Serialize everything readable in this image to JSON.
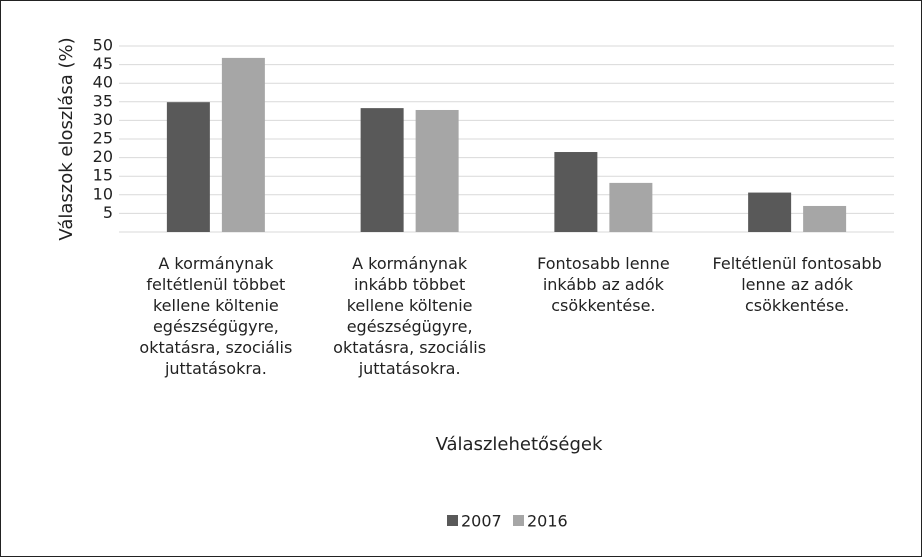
{
  "chart_data": {
    "type": "bar",
    "y_label": "Válaszok eloszlása (%)",
    "x_label": "Válaszlehetőségek",
    "categories": [
      "A kormánynak feltétlenül többet kellene költenie egészségügyre, oktatásra, szociális juttatásokra.",
      "A kormánynak inkább többet kellene költenie egészségügyre, oktatásra, szociális juttatásokra.",
      "Fontosabb lenne inkább az adók csökkentése.",
      "Feltétlenül fontosabb lenne az adók csökkentése."
    ],
    "series": [
      {
        "name": "2007",
        "color": "#595959",
        "values": [
          34.9,
          33.3,
          21.5,
          10.6
        ]
      },
      {
        "name": "2016",
        "color": "#a6a6a6",
        "values": [
          46.8,
          32.8,
          13.2,
          7.0
        ]
      }
    ],
    "ylim": [
      0,
      50
    ],
    "yticks": [
      5,
      10,
      15,
      20,
      25,
      30,
      35,
      40,
      45,
      50
    ],
    "grid": true,
    "legend": "bottom"
  }
}
